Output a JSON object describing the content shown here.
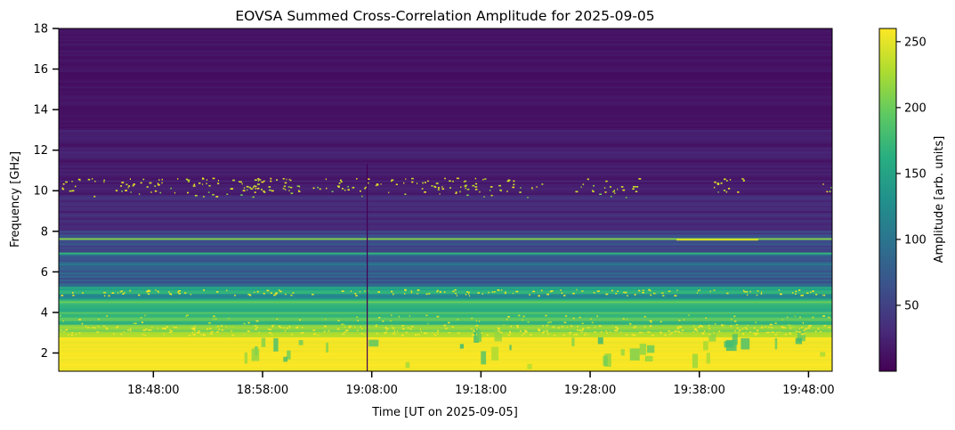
{
  "chart_data": {
    "type": "heatmap",
    "title": "EOVSA Summed Cross-Correlation Amplitude for 2025-09-05",
    "xlabel": "Time [UT on 2025-09-05]",
    "ylabel": "Frequency [GHz]",
    "x_ticks": [
      "18:48:00",
      "18:58:00",
      "19:08:00",
      "19:18:00",
      "19:28:00",
      "19:38:00",
      "19:48:00"
    ],
    "xlim": [
      "18:39:20",
      "19:50:10"
    ],
    "y_ticks": [
      2,
      4,
      6,
      8,
      10,
      12,
      14,
      16,
      18
    ],
    "ylim": [
      1.1,
      18
    ],
    "colormap": "viridis",
    "colorbar": {
      "label": "Amplitude [arb. units]",
      "ticks": [
        50,
        100,
        150,
        200,
        250
      ],
      "range": [
        0,
        260
      ]
    },
    "data_features": [
      {
        "freq_range": [
          1.1,
          2.8
        ],
        "amplitude": 258,
        "note": "saturated low-frequency band"
      },
      {
        "freq_range": [
          2.8,
          4.6
        ],
        "amplitude": 175,
        "note": "strong band with speckle to 260 near 3.1 GHz"
      },
      {
        "freq_range": [
          4.6,
          5.2
        ],
        "amplitude": 120,
        "note": "band with speckle near 5.0 GHz"
      },
      {
        "freq_range": [
          5.2,
          8.0
        ],
        "amplitude": 60,
        "note": "mixed banded region"
      },
      {
        "freq_range": [
          8.0,
          13.0
        ],
        "amplitude": 25,
        "note": "intermittent RFI speckle near 10.3 GHz"
      },
      {
        "freq_range": [
          13.0,
          18.0
        ],
        "amplitude": 12,
        "note": "low background"
      }
    ],
    "grid": false,
    "legend": "colorbar-right"
  },
  "colors": {
    "viridis_low": "#440154",
    "viridis_mid": "#21918c",
    "viridis_high": "#fde725"
  }
}
